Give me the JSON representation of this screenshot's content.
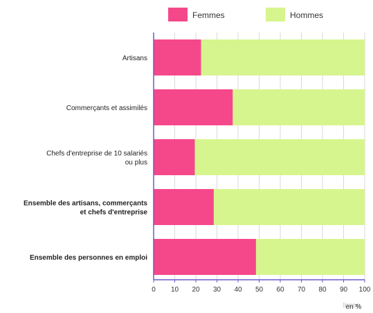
{
  "chart_data": {
    "type": "bar",
    "orientation": "horizontal",
    "stacked": true,
    "categories": [
      {
        "label": [
          "Artisans"
        ],
        "bold": false
      },
      {
        "label": [
          "Commerçants et assimilés"
        ],
        "bold": false
      },
      {
        "label": [
          "Chefs d'entreprise de 10 salariés",
          "ou plus"
        ],
        "bold": false
      },
      {
        "label": [
          "Ensemble des artisans, commerçants",
          "et chefs d'entreprise"
        ],
        "bold": true
      },
      {
        "label": [
          "Ensemble des personnes en emploi"
        ],
        "bold": true
      }
    ],
    "series": [
      {
        "name": "Femmes",
        "color": "#f5488b",
        "values": [
          22.5,
          37.5,
          19.5,
          28.5,
          48.5
        ]
      },
      {
        "name": "Hommes",
        "color": "#d7f58e",
        "values": [
          77.5,
          62.5,
          80.5,
          71.5,
          51.5
        ]
      }
    ],
    "xlim": [
      0,
      100
    ],
    "xticks": [
      0,
      10,
      20,
      30,
      40,
      50,
      60,
      70,
      80,
      90,
      100
    ],
    "xlabel": "en %",
    "legend_position": "top",
    "grid": true
  },
  "credit": "Insee"
}
